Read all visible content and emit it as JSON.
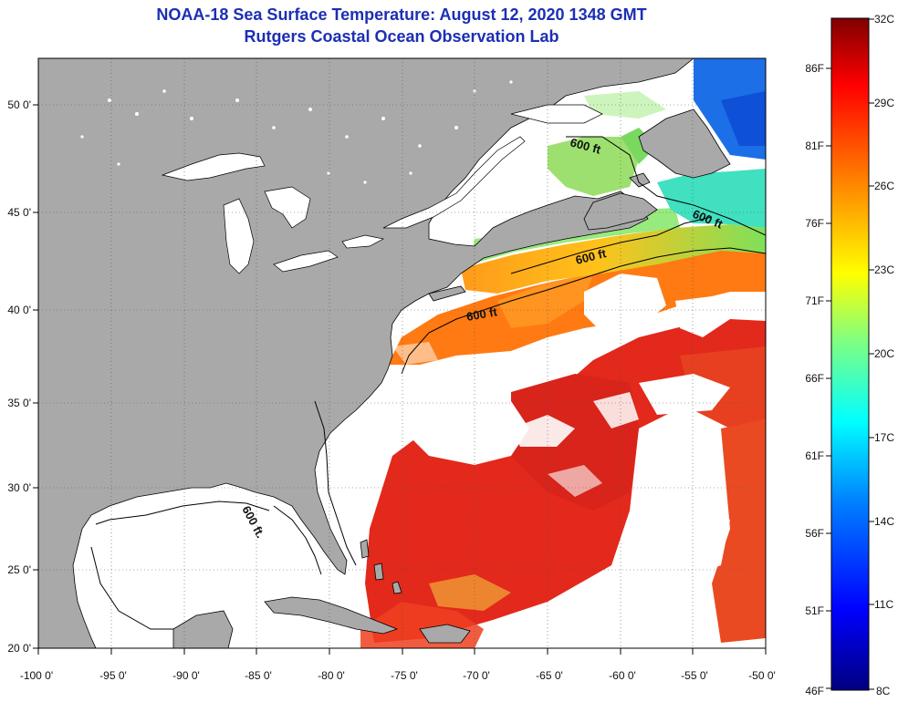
{
  "header": {
    "title": "NOAA-18 Sea Surface Temperature:  August 12, 2020 1348 GMT",
    "subtitle": "Rutgers Coastal Ocean Observation Lab"
  },
  "map": {
    "lon_range": [
      -100,
      -50
    ],
    "lat_range": [
      20,
      52.5
    ],
    "x_ticks": [
      "-100 0'",
      "-95 0'",
      "-90 0'",
      "-85 0'",
      "-80 0'",
      "-75 0'",
      "-70 0'",
      "-65 0'",
      "-60 0'",
      "-55 0'",
      "-50 0'"
    ],
    "y_ticks": [
      "50 0'",
      "45 0'",
      "40 0'",
      "35 0'",
      "30 0'",
      "25 0'",
      "20 0'"
    ],
    "contour_labels": [
      "600 ft",
      "600 ft",
      "600 ft",
      "600 ft",
      "600 ft."
    ],
    "colors": {
      "land": "#a9a9a9",
      "cloud": "#ffffff",
      "warm": "#e0231a",
      "coastline": "#000000"
    }
  },
  "colorbar": {
    "celsius_labels": [
      "32C",
      "29C",
      "26C",
      "23C",
      "20C",
      "17C",
      "14C",
      "11C",
      "8C"
    ],
    "fahrenheit_labels": [
      "86F",
      "81F",
      "76F",
      "71F",
      "66F",
      "61F",
      "56F",
      "51F",
      "46F"
    ],
    "colors": [
      "#000080",
      "#0000ff",
      "#0080ff",
      "#00ffff",
      "#80ff80",
      "#ffff00",
      "#ff8000",
      "#ff0000",
      "#800000"
    ]
  }
}
